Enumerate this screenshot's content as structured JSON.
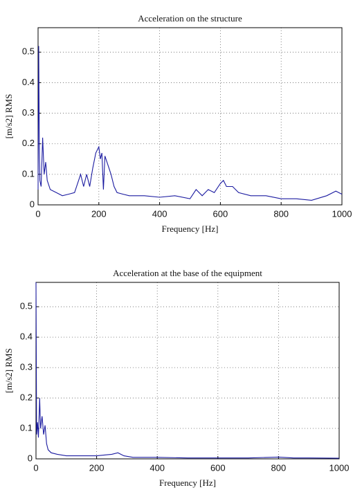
{
  "chart_data": [
    {
      "type": "line",
      "title": "Acceleration on the structure",
      "xlabel": "Frequency [Hz]",
      "ylabel": "[m/s2] RMS",
      "x": [
        0,
        2,
        4,
        6,
        10,
        15,
        20,
        25,
        30,
        40,
        60,
        80,
        100,
        120,
        140,
        150,
        160,
        170,
        180,
        190,
        200,
        205,
        210,
        215,
        220,
        230,
        240,
        250,
        260,
        280,
        300,
        350,
        400,
        450,
        500,
        520,
        540,
        560,
        580,
        600,
        610,
        620,
        640,
        660,
        700,
        750,
        800,
        850,
        900,
        950,
        980,
        1000
      ],
      "values": [
        0.05,
        0.52,
        0.2,
        0.08,
        0.06,
        0.22,
        0.1,
        0.14,
        0.08,
        0.05,
        0.04,
        0.03,
        0.035,
        0.04,
        0.1,
        0.06,
        0.1,
        0.06,
        0.12,
        0.17,
        0.19,
        0.15,
        0.17,
        0.05,
        0.16,
        0.13,
        0.1,
        0.06,
        0.04,
        0.035,
        0.03,
        0.03,
        0.025,
        0.03,
        0.02,
        0.05,
        0.03,
        0.05,
        0.04,
        0.07,
        0.08,
        0.06,
        0.06,
        0.04,
        0.03,
        0.03,
        0.02,
        0.02,
        0.015,
        0.03,
        0.045,
        0.035
      ],
      "color": "#1a1aa0",
      "xlim": [
        0,
        1000
      ],
      "xticks": [
        0,
        200,
        400,
        600,
        800,
        1000
      ],
      "ylim": [
        0,
        0.58
      ],
      "yticks": [
        0,
        0.1,
        0.2,
        0.3,
        0.4,
        0.5
      ],
      "grid": true
    },
    {
      "type": "line",
      "title": "Acceleration at the base of the equipment",
      "xlabel": "Frequency [Hz]",
      "ylabel": "[m/s2] RMS",
      "x": [
        0,
        2,
        5,
        8,
        12,
        15,
        20,
        25,
        30,
        35,
        40,
        50,
        70,
        100,
        150,
        200,
        250,
        270,
        290,
        320,
        400,
        500,
        600,
        700,
        800,
        850,
        900,
        1000
      ],
      "values": [
        0.58,
        0.08,
        0.12,
        0.07,
        0.2,
        0.1,
        0.14,
        0.08,
        0.11,
        0.05,
        0.03,
        0.02,
        0.015,
        0.01,
        0.01,
        0.01,
        0.015,
        0.02,
        0.01,
        0.005,
        0.005,
        0.003,
        0.003,
        0.003,
        0.006,
        0.003,
        0.003,
        0.002
      ],
      "color": "#1a1aa0",
      "xlim": [
        0,
        1000
      ],
      "xticks": [
        0,
        200,
        400,
        600,
        800,
        1000
      ],
      "ylim": [
        0,
        0.58
      ],
      "yticks": [
        0,
        0.1,
        0.2,
        0.3,
        0.4,
        0.5
      ],
      "grid": true
    }
  ]
}
